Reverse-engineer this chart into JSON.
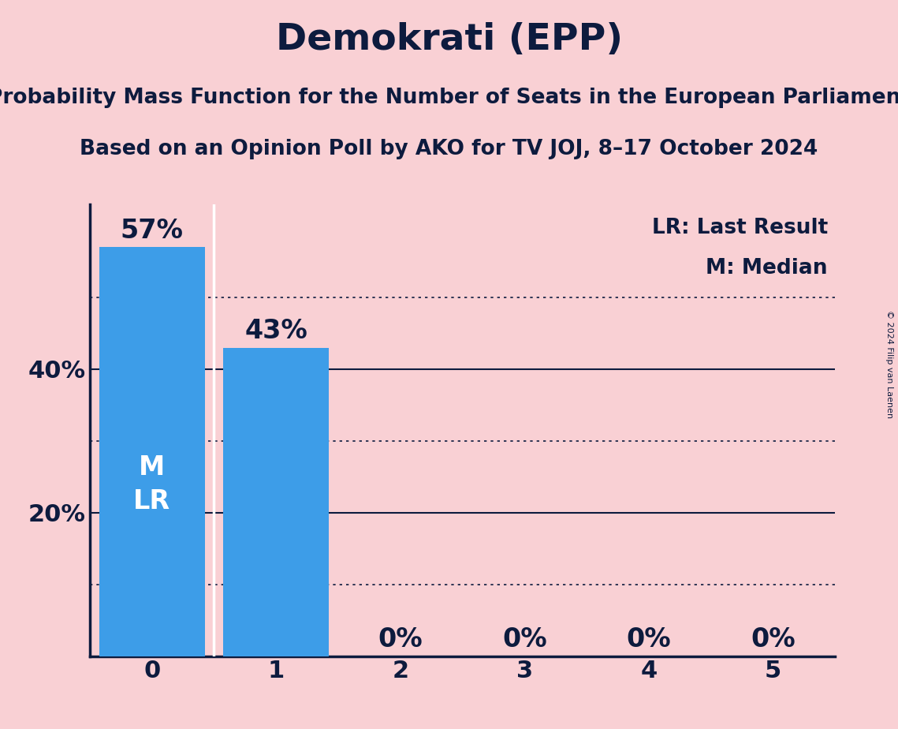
{
  "title": "Demokrati (EPP)",
  "subtitle1": "Probability Mass Function for the Number of Seats in the European Parliament",
  "subtitle2": "Based on an Opinion Poll by AKO for TV JOJ, 8–17 October 2024",
  "copyright": "© 2024 Filip van Laenen",
  "categories": [
    0,
    1,
    2,
    3,
    4,
    5
  ],
  "values": [
    0.57,
    0.43,
    0.0,
    0.0,
    0.0,
    0.0
  ],
  "bar_color": "#3d9de8",
  "background_color": "#f9d0d4",
  "text_color": "#0d1b3e",
  "legend_lr": "LR: Last Result",
  "legend_m": "M: Median",
  "ylim": [
    0,
    0.63
  ],
  "solid_yticks": [
    0.2,
    0.4
  ],
  "dotted_yticks": [
    0.1,
    0.3,
    0.5
  ],
  "title_fontsize": 34,
  "subtitle_fontsize": 19,
  "bar_label_fontsize": 24,
  "axis_tick_fontsize": 22,
  "legend_fontsize": 19,
  "inner_label_fontsize": 24,
  "separator_color": "#ffffff",
  "copyright_fontsize": 8
}
